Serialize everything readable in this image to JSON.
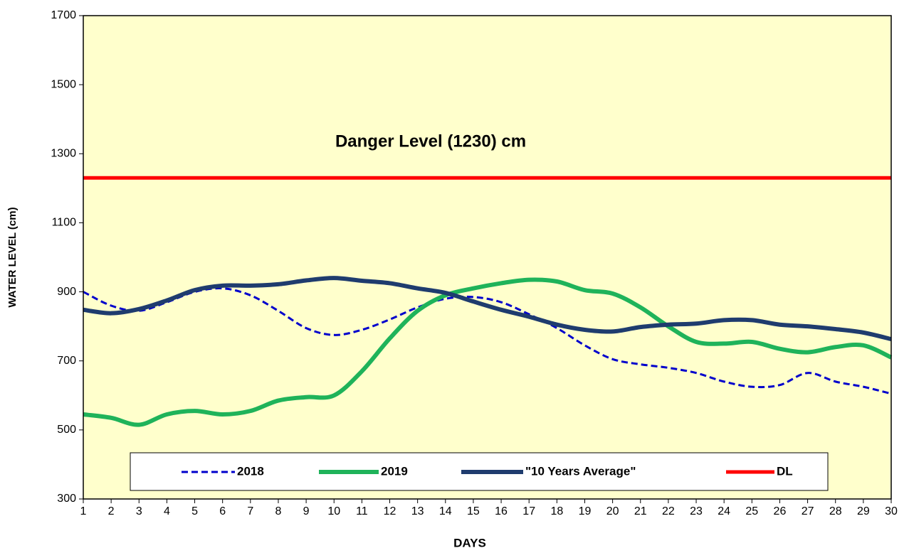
{
  "chart_data": {
    "type": "line",
    "annotation": "Danger Level (1230) cm",
    "xlabel": "DAYS",
    "ylabel": "WATER LEVEL (cm)",
    "x": [
      1,
      2,
      3,
      4,
      5,
      6,
      7,
      8,
      9,
      10,
      11,
      12,
      13,
      14,
      15,
      16,
      17,
      18,
      19,
      20,
      21,
      22,
      23,
      24,
      25,
      26,
      27,
      28,
      29,
      30
    ],
    "xlim": [
      1,
      30
    ],
    "xticks": [
      1,
      2,
      3,
      4,
      5,
      6,
      7,
      8,
      9,
      10,
      11,
      12,
      13,
      14,
      15,
      16,
      17,
      18,
      19,
      20,
      21,
      22,
      23,
      24,
      25,
      26,
      27,
      28,
      29,
      30
    ],
    "ylim": [
      300,
      1700
    ],
    "yticks": [
      300,
      500,
      700,
      900,
      1100,
      1300,
      1500,
      1700
    ],
    "grid": false,
    "legend": "bottom",
    "background": "#ffffcc",
    "series": [
      {
        "name": "2018",
        "color": "#0000cc",
        "dashed": true,
        "width": 3,
        "values": [
          900,
          860,
          845,
          870,
          900,
          910,
          890,
          845,
          795,
          775,
          790,
          820,
          855,
          880,
          885,
          870,
          835,
          795,
          745,
          705,
          690,
          680,
          665,
          640,
          625,
          630,
          665,
          640,
          625,
          605
        ]
      },
      {
        "name": "2019",
        "color": "#1fb35a",
        "dashed": false,
        "width": 6,
        "values": [
          545,
          535,
          515,
          545,
          555,
          545,
          555,
          585,
          595,
          600,
          670,
          765,
          845,
          890,
          910,
          925,
          935,
          930,
          905,
          895,
          855,
          800,
          755,
          750,
          755,
          735,
          725,
          740,
          745,
          710
        ]
      },
      {
        "name": "\"10 Years Average\"",
        "color": "#1f3c6e",
        "dashed": false,
        "width": 6,
        "values": [
          848,
          838,
          850,
          875,
          905,
          918,
          918,
          922,
          933,
          940,
          932,
          925,
          910,
          897,
          872,
          848,
          828,
          805,
          790,
          785,
          798,
          805,
          808,
          818,
          818,
          805,
          800,
          792,
          782,
          763
        ]
      },
      {
        "name": "DL",
        "color": "#ff0000",
        "dashed": false,
        "width": 5,
        "values": [
          1230,
          1230,
          1230,
          1230,
          1230,
          1230,
          1230,
          1230,
          1230,
          1230,
          1230,
          1230,
          1230,
          1230,
          1230,
          1230,
          1230,
          1230,
          1230,
          1230,
          1230,
          1230,
          1230,
          1230,
          1230,
          1230,
          1230,
          1230,
          1230,
          1230
        ]
      }
    ]
  }
}
